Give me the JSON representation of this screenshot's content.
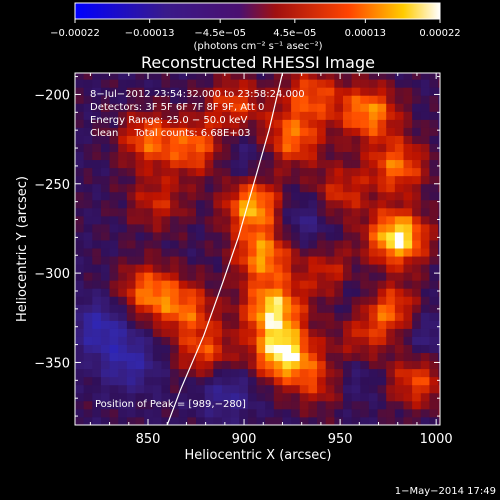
{
  "chart_data": {
    "type": "heatmap",
    "title": "Reconstructed RHESSI Image",
    "xlabel": "Heliocentric X (arcsec)",
    "ylabel": "Heliocentric Y (arcsec)",
    "xlim": [
      812,
      1002
    ],
    "ylim": [
      -385,
      -188
    ],
    "x_ticks": [
      850,
      900,
      950,
      1000
    ],
    "x_tick_labels": [
      "850",
      "900",
      "950",
      "1000"
    ],
    "y_ticks": [
      -200,
      -250,
      -300,
      -350
    ],
    "y_tick_labels": [
      "−200",
      "−250",
      "−300",
      "−350"
    ],
    "colorbar": {
      "range": [
        -0.00022,
        0.00022
      ],
      "ticks": [
        -0.00022,
        -0.00013,
        -4.5e-05,
        4.5e-05,
        0.00013,
        0.00022
      ],
      "tick_labels": [
        "−0.00022",
        "−0.00013",
        "−4.5e−05",
        "4.5e−05",
        "0.00013",
        "0.00022"
      ],
      "units": "(photons cm⁻² s⁻¹ asec⁻²)"
    },
    "annotations": [
      "8−Jul−2012 23:54:32.000 to 23:58:24.000",
      "Detectors: 3F 5F 6F 7F 8F 9F, Att 0",
      "Energy Range: 25.0 − 50.0 keV",
      "Clean     Total counts: 6.68E+03"
    ],
    "peak_label": "Position of Peak = [989,−280]",
    "peak": [
      989,
      -280
    ],
    "limb": [
      [
        920,
        -188
      ],
      [
        913,
        -220
      ],
      [
        905,
        -250
      ],
      [
        897,
        -280
      ],
      [
        889,
        -305
      ],
      [
        879,
        -335
      ],
      [
        867,
        -365
      ],
      [
        860,
        -385
      ]
    ],
    "sources": [
      {
        "x": 905,
        "y": -262,
        "value": 0.00018
      },
      {
        "x": 910,
        "y": -290,
        "value": 0.00016
      },
      {
        "x": 915,
        "y": -320,
        "value": 0.00019
      },
      {
        "x": 920,
        "y": -345,
        "value": 0.00021
      },
      {
        "x": 980,
        "y": -280,
        "value": 0.00022
      },
      {
        "x": 975,
        "y": -320,
        "value": 0.00015
      },
      {
        "x": 965,
        "y": -210,
        "value": 0.00016
      },
      {
        "x": 980,
        "y": -240,
        "value": 0.00014
      },
      {
        "x": 850,
        "y": -225,
        "value": 0.00013
      },
      {
        "x": 875,
        "y": -230,
        "value": 0.00013
      },
      {
        "x": 925,
        "y": -225,
        "value": 0.00014
      },
      {
        "x": 850,
        "y": -310,
        "value": 0.00014
      },
      {
        "x": 870,
        "y": -320,
        "value": 0.00012
      },
      {
        "x": 880,
        "y": -345,
        "value": 0.00012
      },
      {
        "x": 945,
        "y": -300,
        "value": 0.0001
      },
      {
        "x": 950,
        "y": -255,
        "value": 0.0001
      },
      {
        "x": 855,
        "y": -260,
        "value": 9e-05
      },
      {
        "x": 990,
        "y": -360,
        "value": 0.00012
      },
      {
        "x": 940,
        "y": -360,
        "value": 0.00011
      },
      {
        "x": 935,
        "y": -200,
        "value": 0.00012
      },
      {
        "x": 895,
        "y": -205,
        "value": 0.00011
      },
      {
        "x": 960,
        "y": -340,
        "value": 9e-05
      }
    ],
    "negative_regions": [
      {
        "x": 825,
        "y": -330,
        "value": -0.0001
      },
      {
        "x": 840,
        "y": -350,
        "value": -9e-05
      },
      {
        "x": 890,
        "y": -365,
        "value": -8e-05
      },
      {
        "x": 930,
        "y": -270,
        "value": -7e-05
      },
      {
        "x": 955,
        "y": -355,
        "value": -8e-05
      },
      {
        "x": 960,
        "y": -310,
        "value": -6e-05
      },
      {
        "x": 995,
        "y": -335,
        "value": -6e-05
      },
      {
        "x": 900,
        "y": -235,
        "value": -5e-05
      }
    ]
  },
  "footer": {
    "date": "1−May−2014 17:49"
  }
}
